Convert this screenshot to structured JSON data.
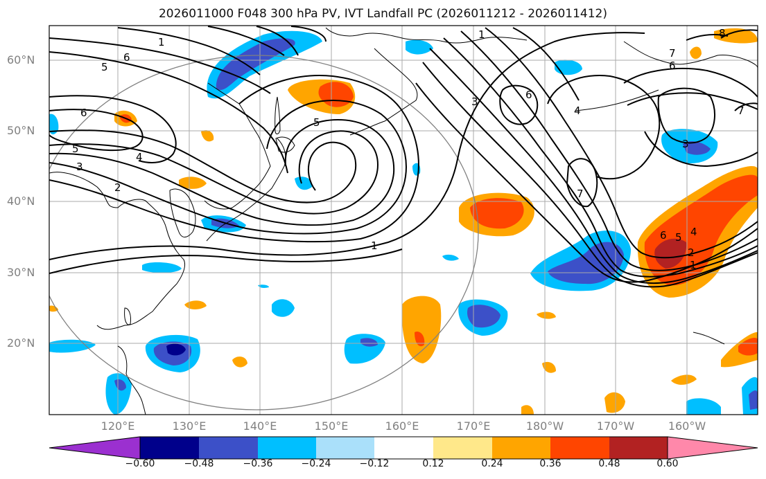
{
  "title": "2026011000 F048 300 hPa PV, IVT Landfall PC (2026011212 - 2026011412)",
  "map": {
    "lat_labels": [
      "60°N",
      "50°N",
      "40°N",
      "30°N",
      "20°N"
    ],
    "lon_labels": [
      "120°E",
      "130°E",
      "140°E",
      "150°E",
      "160°E",
      "170°E",
      "180°W",
      "170°W",
      "160°W"
    ],
    "contour_labels": [
      "1",
      "6",
      "5",
      "6",
      "5",
      "4",
      "3",
      "2",
      "1",
      "5",
      "3",
      "1",
      "6",
      "4",
      "3",
      "7",
      "6",
      "7",
      "6",
      "5",
      "4",
      "2",
      "1",
      "8",
      "7"
    ]
  },
  "colorbar": {
    "ticks": [
      "−0.60",
      "−0.48",
      "−0.36",
      "−0.24",
      "−0.12",
      "0.12",
      "0.24",
      "0.36",
      "0.48",
      "0.60"
    ],
    "colors": [
      "#9b30d0",
      "#00008b",
      "#3c50c8",
      "#00bfff",
      "#aae0fa",
      "#ffffff",
      "#ffe88a",
      "#ffa500",
      "#ff4500",
      "#b22222",
      "#ff88aa"
    ]
  }
}
